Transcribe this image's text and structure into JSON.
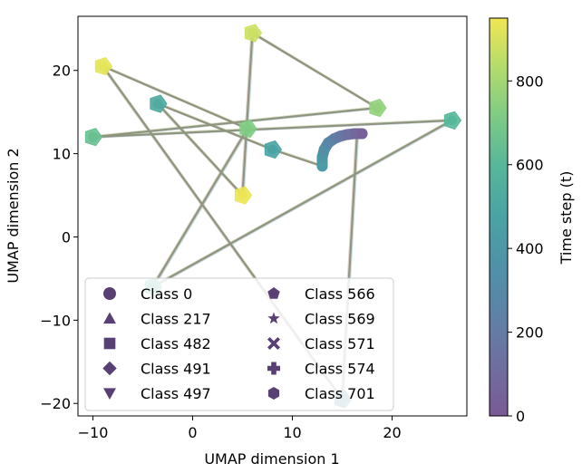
{
  "chart_data": {
    "type": "scatter",
    "xlabel": "UMAP dimension 1",
    "ylabel": "UMAP dimension 2",
    "xlim": [
      -11.5,
      27.5
    ],
    "ylim": [
      -21.5,
      26.5
    ],
    "xticks": [
      "−10",
      "0",
      "10",
      "20"
    ],
    "yticks": [
      "−20",
      "−10",
      "0",
      "10",
      "20"
    ],
    "grid": false,
    "legend": {
      "placement": "lower-left",
      "columns": 2,
      "entries": [
        {
          "label": "Class 0",
          "marker": "circle"
        },
        {
          "label": "Class 217",
          "marker": "triangle-up"
        },
        {
          "label": "Class 482",
          "marker": "square"
        },
        {
          "label": "Class 491",
          "marker": "diamond"
        },
        {
          "label": "Class 497",
          "marker": "triangle-down"
        },
        {
          "label": "Class 566",
          "marker": "pentagon"
        },
        {
          "label": "Class 569",
          "marker": "star"
        },
        {
          "label": "Class 571",
          "marker": "x-filled"
        },
        {
          "label": "Class 574",
          "marker": "plus-filled"
        },
        {
          "label": "Class 701",
          "marker": "hexagon"
        }
      ]
    },
    "colorbar": {
      "label": "Time step (t)",
      "colormap": "viridis",
      "range": [
        0,
        950
      ],
      "ticks": [
        "0",
        "200",
        "400",
        "600",
        "800"
      ]
    },
    "trajectory": [
      {
        "x": 13.0,
        "y": 8.5,
        "t": 420
      },
      {
        "x": 8.0,
        "y": 10.5,
        "t": 480
      },
      {
        "x": -3.5,
        "y": 16.0,
        "t": 520
      },
      {
        "x": 5.0,
        "y": 5.0,
        "t": 940
      },
      {
        "x": 6.0,
        "y": 24.5,
        "t": 880
      },
      {
        "x": 18.5,
        "y": 15.5,
        "t": 760
      },
      {
        "x": -10.0,
        "y": 12.0,
        "t": 650
      },
      {
        "x": 26.0,
        "y": 14.0,
        "t": 600
      },
      {
        "x": -4.0,
        "y": -6.0,
        "t": 560
      },
      {
        "x": 5.5,
        "y": 13.0,
        "t": 720
      },
      {
        "x": -9.0,
        "y": 20.5,
        "t": 930
      },
      {
        "x": 15.0,
        "y": -19.5,
        "t": 300
      },
      {
        "x": 16.5,
        "y": 12.5,
        "t": 50
      }
    ],
    "arc": [
      {
        "x": 13.0,
        "y": 8.5,
        "t": 420
      },
      {
        "x": 13.0,
        "y": 9.6,
        "t": 380
      },
      {
        "x": 13.2,
        "y": 10.5,
        "t": 330
      },
      {
        "x": 13.6,
        "y": 11.3,
        "t": 280
      },
      {
        "x": 14.2,
        "y": 11.8,
        "t": 230
      },
      {
        "x": 14.8,
        "y": 12.1,
        "t": 180
      },
      {
        "x": 15.5,
        "y": 12.3,
        "t": 130
      },
      {
        "x": 16.2,
        "y": 12.4,
        "t": 80
      },
      {
        "x": 17.0,
        "y": 12.4,
        "t": 30
      }
    ]
  },
  "colors": {
    "line": "#8a8f78",
    "marker_dark": "#3b1f5c"
  }
}
